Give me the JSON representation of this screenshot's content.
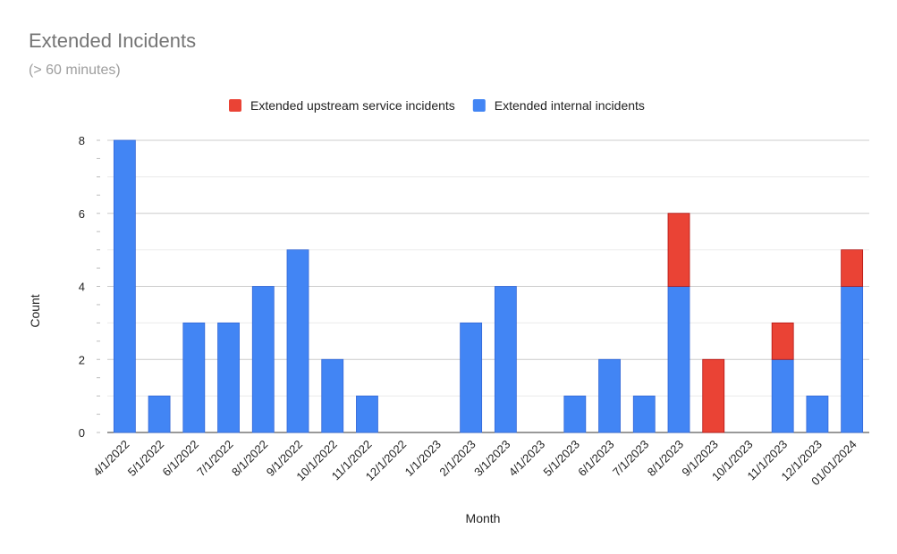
{
  "chart_data": {
    "type": "bar",
    "stacked": true,
    "title": "Extended Incidents",
    "subtitle": "(> 60 minutes)",
    "xlabel": "Month",
    "ylabel": "Count",
    "ylim": [
      0,
      8
    ],
    "yticks": [
      0,
      2,
      4,
      6,
      8
    ],
    "grid": true,
    "legend_position": "top",
    "categories": [
      "4/1/2022",
      "5/1/2022",
      "6/1/2022",
      "7/1/2022",
      "8/1/2022",
      "9/1/2022",
      "10/1/2022",
      "11/1/2022",
      "12/1/2022",
      "1/1/2023",
      "2/1/2023",
      "3/1/2023",
      "4/1/2023",
      "5/1/2023",
      "6/1/2023",
      "7/1/2023",
      "8/1/2023",
      "9/1/2023",
      "10/1/2023",
      "11/1/2023",
      "12/1/2023",
      "01/01/2024"
    ],
    "series": [
      {
        "name": "Extended internal incidents",
        "color": "#4285f4",
        "values": [
          8,
          1,
          3,
          3,
          4,
          5,
          2,
          1,
          0,
          0,
          3,
          4,
          0,
          1,
          2,
          1,
          4,
          0,
          0,
          2,
          1,
          4
        ]
      },
      {
        "name": "Extended upstream service incidents",
        "color": "#ea4335",
        "values": [
          0,
          0,
          0,
          0,
          0,
          0,
          0,
          0,
          0,
          0,
          0,
          0,
          0,
          0,
          0,
          0,
          2,
          2,
          0,
          1,
          0,
          1
        ]
      }
    ],
    "legend_order": [
      1,
      0
    ]
  }
}
